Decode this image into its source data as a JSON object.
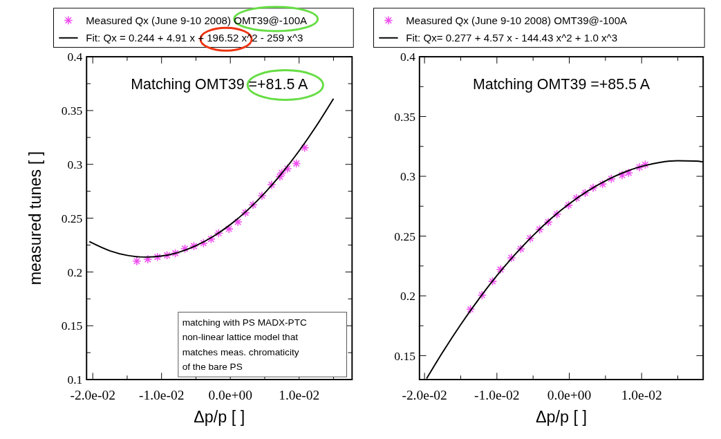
{
  "chart_data": [
    {
      "type": "scatter",
      "xlabel": "Δp/p [ ]",
      "ylabel": "measured tunes [ ]",
      "xlim": [
        -0.0209,
        0.0177
      ],
      "ylim": [
        0.1,
        0.4
      ],
      "xticks": [
        {
          "value": -0.02,
          "label": "-2.0e-02"
        },
        {
          "value": -0.015,
          "label": null
        },
        {
          "value": -0.01,
          "label": "-1.0e-02"
        },
        {
          "value": -0.005,
          "label": null
        },
        {
          "value": 0,
          "label": "0.0e+00"
        },
        {
          "value": 0.005,
          "label": null
        },
        {
          "value": 0.01,
          "label": "1.0e-02"
        },
        {
          "value": 0.015,
          "label": null
        }
      ],
      "yticks": [
        0.1,
        {
          "value": 0.125,
          "label": null
        },
        0.15,
        {
          "value": 0.175,
          "label": null
        },
        0.2,
        {
          "value": 0.225,
          "label": null
        },
        0.25,
        {
          "value": 0.275,
          "label": null
        },
        0.3,
        {
          "value": 0.325,
          "label": null
        },
        0.35,
        {
          "value": 0.375,
          "label": null
        },
        0.4
      ],
      "legend": "top",
      "grid": false,
      "series": [
        {
          "name": "Measured Qx (June 9-10 2008) OMT39@-100A",
          "marker": "cross",
          "color": "#f050f0",
          "x": [
            -0.0136,
            -0.012,
            -0.0106,
            -0.0092,
            -0.008,
            -0.0066,
            -0.0053,
            -0.0039,
            -0.0028,
            -0.0017,
            -0.0002,
            0.0011,
            0.0022,
            0.0033,
            0.0046,
            0.006,
            0.0072,
            0.0075,
            0.0083,
            0.0096,
            0.0108
          ],
          "values": [
            0.21,
            0.2118,
            0.2139,
            0.2155,
            0.2174,
            0.2216,
            0.224,
            0.2268,
            0.2306,
            0.236,
            0.24,
            0.2465,
            0.255,
            0.2624,
            0.2708,
            0.281,
            0.2886,
            0.292,
            0.296,
            0.3008,
            0.3155
          ]
        },
        {
          "name": "Fit: Qx = 0.244 + 4.91 x + 196.52 x^2 - 259 x^3",
          "type": "line",
          "color": "#000000",
          "line_style": "solid",
          "x": [
            -0.0205,
            -0.0175,
            -0.015,
            -0.0125,
            -0.01,
            -0.0075,
            -0.005,
            -0.0025,
            0,
            0.0025,
            0.005,
            0.0075,
            0.01,
            0.0125,
            0.015
          ],
          "values": [
            0.2282,
            0.2196,
            0.2154,
            0.2138,
            0.2148,
            0.2183,
            0.2244,
            0.233,
            0.244,
            0.2575,
            0.2734,
            0.2918,
            0.3125,
            0.3356,
            0.361
          ]
        }
      ],
      "annotations": [
        "Matching OMT39 =+81.5 A",
        "matching with PS MADX-PTC\nnon-linear lattice model that\nmatches meas. chromaticity\nof the bare PS"
      ]
    },
    {
      "type": "scatter",
      "xlabel": "Δp/p [ ]",
      "xlim": [
        -0.0207,
        0.0185
      ],
      "ylim": [
        0.13,
        0.4
      ],
      "xticks": [
        {
          "value": -0.02,
          "label": "-2.0e-02"
        },
        {
          "value": -0.015,
          "label": null
        },
        {
          "value": -0.01,
          "label": "-1.0e-02"
        },
        {
          "value": -0.005,
          "label": null
        },
        {
          "value": 0,
          "label": "0.0e+00"
        },
        {
          "value": 0.005,
          "label": null
        },
        {
          "value": 0.01,
          "label": "1.0e-02"
        },
        {
          "value": 0.015,
          "label": null
        }
      ],
      "yticks": [
        0.15,
        {
          "value": 0.175,
          "label": null
        },
        0.2,
        {
          "value": 0.225,
          "label": null
        },
        0.25,
        {
          "value": 0.275,
          "label": null
        },
        0.3,
        {
          "value": 0.325,
          "label": null
        },
        0.35,
        {
          "value": 0.375,
          "label": null
        },
        0.4
      ],
      "legend": "top",
      "grid": false,
      "series": [
        {
          "name": "Measured Qx (June 9-10 2008) OMT39@-100A",
          "marker": "cross",
          "color": "#f050f0",
          "x": [
            -0.01365,
            -0.01206,
            -0.0106,
            -0.0095,
            -0.008,
            -0.0067,
            -0.0054,
            -0.0041,
            -0.0029,
            -0.0017,
            -0.0001,
            0.001,
            0.0022,
            0.0033,
            0.0046,
            0.0058,
            0.0073,
            0.0082,
            0.0097,
            0.0105
          ],
          "values": [
            0.1888,
            0.2006,
            0.2122,
            0.2221,
            0.2318,
            0.2393,
            0.2481,
            0.2556,
            0.2617,
            0.2683,
            0.2758,
            0.2818,
            0.2861,
            0.2904,
            0.2935,
            0.2979,
            0.301,
            0.3029,
            0.3076,
            0.3098
          ]
        },
        {
          "name": "Fit: Qx= 0.277 + 4.57 x - 144.43 x^2 + 1.0 x^3",
          "type": "line",
          "color": "#000000",
          "line_style": "solid",
          "x": [
            -0.0197,
            -0.0175,
            -0.015,
            -0.0125,
            -0.01,
            -0.0075,
            -0.005,
            -0.0025,
            0,
            0.0025,
            0.005,
            0.0075,
            0.01,
            0.0125,
            0.015,
            0.0175,
            0.0185
          ],
          "values": [
            0.1309,
            0.1528,
            0.176,
            0.1973,
            0.2169,
            0.2346,
            0.2505,
            0.2647,
            0.277,
            0.2875,
            0.2962,
            0.3032,
            0.3083,
            0.3116,
            0.313,
            0.3127,
            0.3121
          ]
        }
      ],
      "annotations": [
        "Matching OMT39 =+85.5 A"
      ]
    }
  ]
}
